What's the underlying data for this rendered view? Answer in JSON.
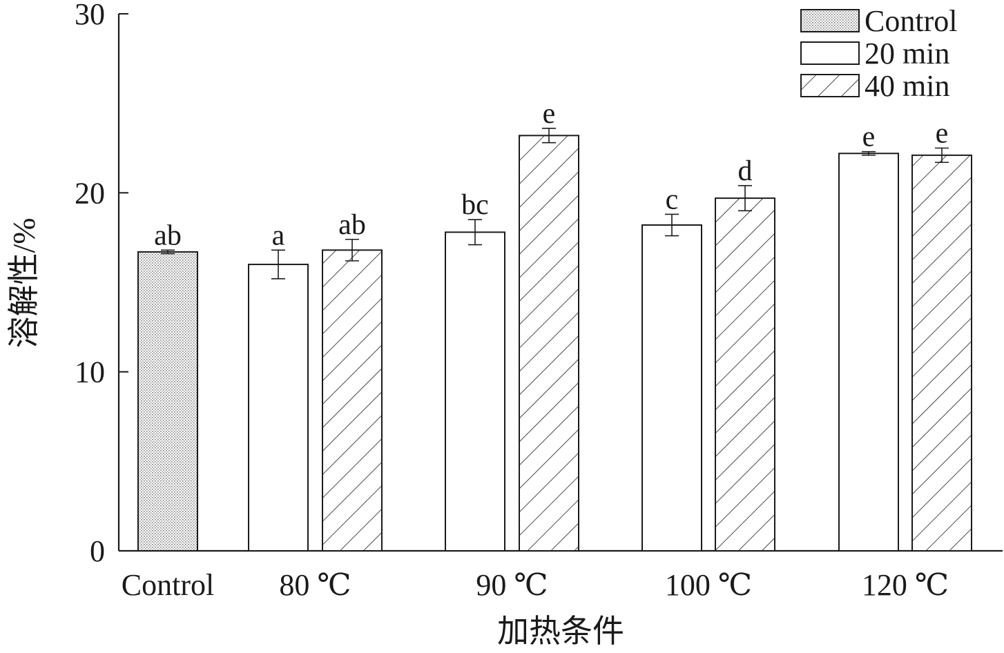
{
  "chart_data": {
    "type": "bar",
    "title": "",
    "xlabel": "加热条件",
    "ylabel": "溶解性/%",
    "ylim": [
      0,
      30
    ],
    "yticks": [
      "0",
      "10",
      "20",
      "30"
    ],
    "grid": false,
    "legend_position": "top-right",
    "groups": [
      {
        "label": "Control",
        "bars": [
          {
            "series": "Control",
            "value": 16.7,
            "error": 0.1,
            "sig": "ab"
          }
        ]
      },
      {
        "label": "80 ℃",
        "bars": [
          {
            "series": "20 min",
            "value": 16.0,
            "error": 0.8,
            "sig": "a"
          },
          {
            "series": "40 min",
            "value": 16.8,
            "error": 0.6,
            "sig": "ab"
          }
        ]
      },
      {
        "label": "90 ℃",
        "bars": [
          {
            "series": "20 min",
            "value": 17.8,
            "error": 0.7,
            "sig": "bc"
          },
          {
            "series": "40 min",
            "value": 23.2,
            "error": 0.4,
            "sig": "e"
          }
        ]
      },
      {
        "label": "100 ℃",
        "bars": [
          {
            "series": "20 min",
            "value": 18.2,
            "error": 0.6,
            "sig": "c"
          },
          {
            "series": "40 min",
            "value": 19.7,
            "error": 0.7,
            "sig": "d"
          }
        ]
      },
      {
        "label": "120 ℃",
        "bars": [
          {
            "series": "20 min",
            "value": 22.2,
            "error": 0.1,
            "sig": "e"
          },
          {
            "series": "40 min",
            "value": 22.1,
            "error": 0.4,
            "sig": "e"
          }
        ]
      }
    ],
    "legend": [
      {
        "name": "Control",
        "pattern": "dots"
      },
      {
        "name": "20 min",
        "pattern": "blank"
      },
      {
        "name": "40 min",
        "pattern": "hatch"
      }
    ]
  }
}
